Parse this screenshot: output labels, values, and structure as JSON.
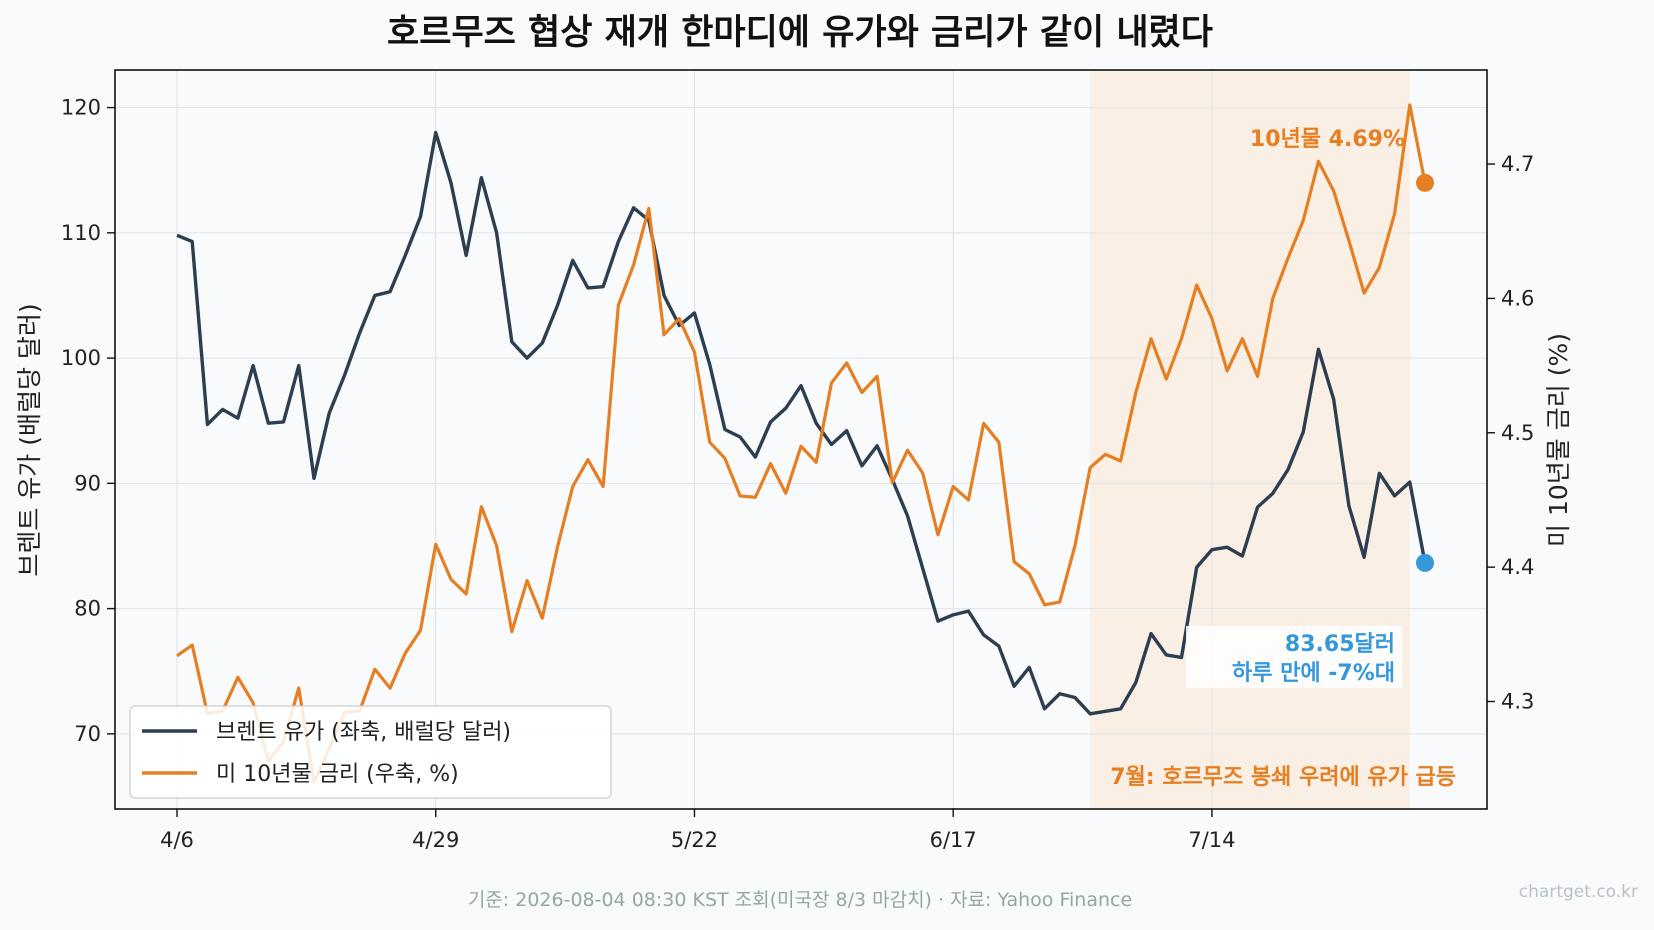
{
  "chart_data": {
    "type": "line",
    "title": "호르무즈 협상 재개 한마디에 유가와 금리가 같이 내렸다",
    "x_tick_labels": [
      "4/6",
      "4/29",
      "5/22",
      "6/17",
      "7/14"
    ],
    "x_tick_index": [
      0,
      17,
      34,
      51,
      68
    ],
    "ylabel_left": "브렌트 유가 (배럴당 달러)",
    "ylabel_right": "미 10년물 금리 (%)",
    "ylim_left": [
      64,
      123
    ],
    "ylim_right": [
      4.22,
      4.77
    ],
    "yticks_left": [
      "70",
      "80",
      "90",
      "100",
      "110",
      "120"
    ],
    "yticks_right": [
      "4.3",
      "4.4",
      "4.5",
      "4.6",
      "4.7"
    ],
    "grid": true,
    "legend_position": "bottom-left",
    "shaded_region": {
      "start_index": 60,
      "end_index": 81,
      "label": "7월: 호르무즈 봉쇄 우려에 유가 급등"
    },
    "series": [
      {
        "name": "브렌트 유가 (좌축, 배럴당 달러)",
        "axis": "left",
        "color": "#2c3e50",
        "values": [
          109.8,
          109.3,
          94.7,
          95.9,
          95.2,
          99.4,
          94.8,
          94.9,
          99.4,
          90.4,
          95.6,
          98.6,
          102.0,
          105.0,
          105.3,
          108.2,
          111.3,
          118.0,
          114.0,
          108.2,
          114.4,
          110.0,
          101.3,
          100.0,
          101.2,
          104.2,
          107.8,
          105.6,
          105.7,
          109.3,
          112.0,
          111.0,
          105.0,
          102.6,
          103.6,
          99.5,
          94.3,
          93.7,
          92.1,
          94.9,
          96.0,
          97.8,
          94.8,
          93.1,
          94.2,
          91.4,
          93.0,
          90.3,
          87.4,
          83.2,
          79.0,
          79.5,
          79.8,
          77.9,
          77.0,
          73.8,
          75.3,
          72.0,
          73.2,
          72.9,
          71.6,
          71.8,
          72.0,
          74.1,
          78.0,
          76.3,
          76.1,
          83.3,
          84.7,
          84.9,
          84.2,
          88.1,
          89.2,
          91.1,
          94.1,
          100.7,
          96.7,
          88.2,
          84.1,
          90.8,
          89.0,
          90.1,
          83.65
        ]
      },
      {
        "name": "미 10년물 금리 (우축, %)",
        "axis": "right",
        "color": "#e67e22",
        "values": [
          4.334,
          4.342,
          4.291,
          4.293,
          4.318,
          4.299,
          4.256,
          4.27,
          4.31,
          4.24,
          4.265,
          4.292,
          4.293,
          4.324,
          4.31,
          4.336,
          4.353,
          4.417,
          4.391,
          4.38,
          4.445,
          4.416,
          4.352,
          4.39,
          4.362,
          4.415,
          4.46,
          4.48,
          4.46,
          4.595,
          4.625,
          4.667,
          4.573,
          4.585,
          4.56,
          4.493,
          4.481,
          4.453,
          4.452,
          4.477,
          4.455,
          4.49,
          4.478,
          4.537,
          4.552,
          4.53,
          4.542,
          4.463,
          4.487,
          4.47,
          4.424,
          4.46,
          4.45,
          4.507,
          4.493,
          4.404,
          4.395,
          4.372,
          4.374,
          4.416,
          4.474,
          4.484,
          4.479,
          4.53,
          4.57,
          4.54,
          4.57,
          4.61,
          4.585,
          4.546,
          4.57,
          4.542,
          4.6,
          4.63,
          4.658,
          4.702,
          4.68,
          4.643,
          4.604,
          4.623,
          4.663,
          4.744,
          4.686
        ]
      }
    ],
    "annotations": {
      "yield_last": "10년물 4.69%",
      "oil_last_line1": "83.65달러",
      "oil_last_line2": "하루 만에 -7%대"
    }
  },
  "footer": {
    "source": "기준: 2026-08-04 08:30 KST 조회(미국장 8/3 마감치) · 자료: Yahoo Finance",
    "watermark": "chartget.co.kr"
  },
  "colors": {
    "oil": "#2c3e50",
    "yield": "#e67e22",
    "oil_marker": "#3498db",
    "shade": "#f9efe4",
    "plot_bg": "#f8fafc"
  }
}
